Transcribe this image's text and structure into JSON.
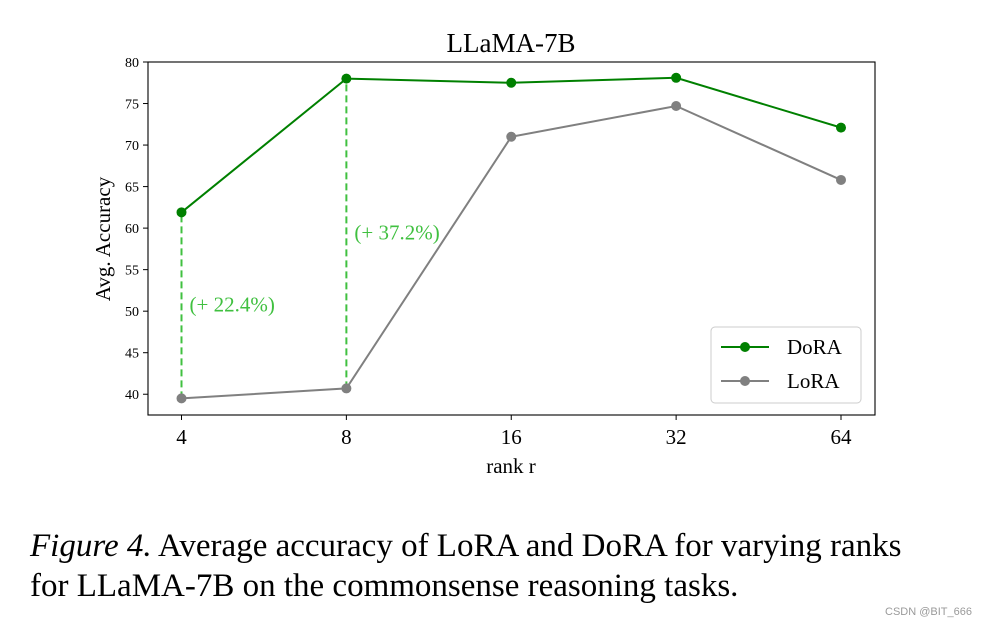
{
  "chart_data": {
    "type": "line",
    "title": "LLaMA-7B",
    "xlabel": "rank r",
    "ylabel": "Avg. Accuracy",
    "categories": [
      "4",
      "8",
      "16",
      "32",
      "64"
    ],
    "ylim": [
      37.5,
      80
    ],
    "yticks": [
      40,
      45,
      50,
      55,
      60,
      65,
      70,
      75,
      80
    ],
    "series": [
      {
        "name": "DoRA",
        "color": "#008000",
        "values": [
          61.9,
          78.0,
          77.5,
          78.1,
          72.1
        ]
      },
      {
        "name": "LoRA",
        "color": "#808080",
        "values": [
          39.5,
          40.7,
          71.0,
          74.7,
          65.8
        ]
      }
    ],
    "annotations": [
      {
        "category": "4",
        "from": 39.5,
        "to": 61.9,
        "label": "(+ 22.4%)",
        "color": "#40c040"
      },
      {
        "category": "8",
        "from": 40.7,
        "to": 78.0,
        "label": "(+ 37.2%)",
        "color": "#40c040"
      }
    ],
    "legend_position": "lower-right",
    "grid": false
  },
  "caption": {
    "figure_label": "Figure 4.",
    "line1": "Average accuracy of LoRA and DoRA for varying ranks",
    "line2": "for LLaMA-7B on the commonsense reasoning tasks."
  },
  "watermark": "CSDN @BIT_666"
}
